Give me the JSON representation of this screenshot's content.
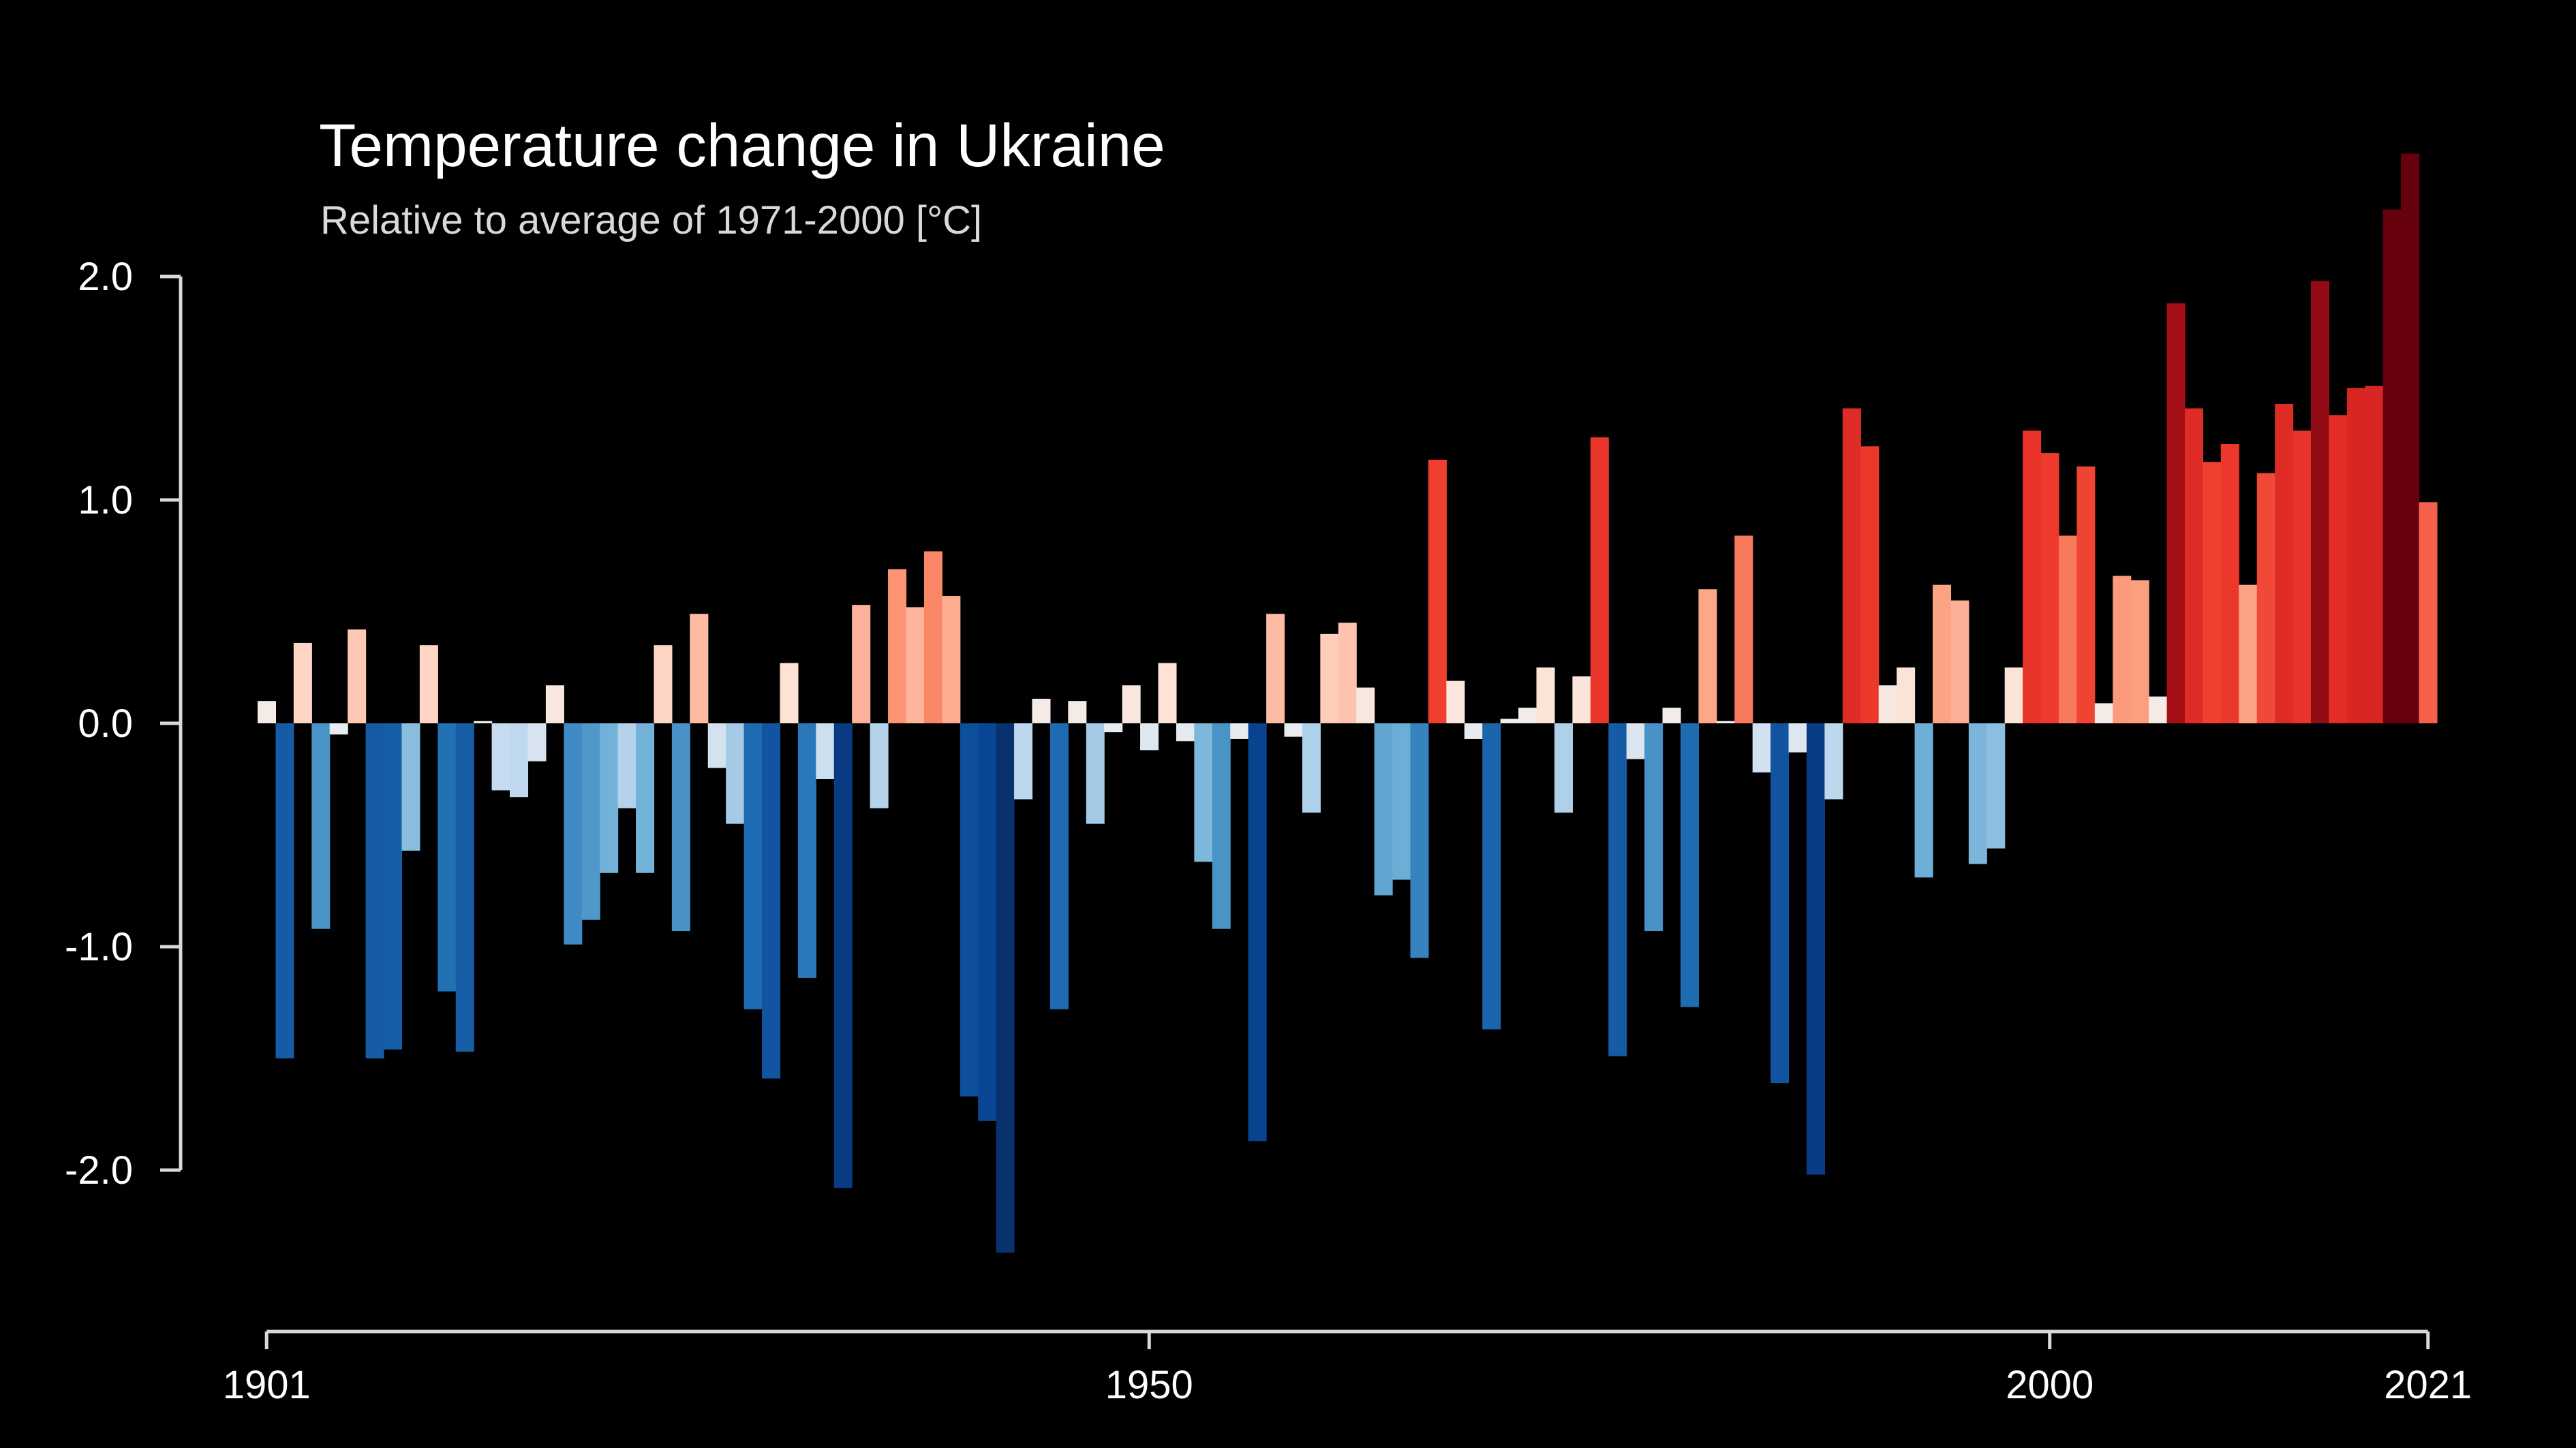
{
  "chart_data": {
    "type": "bar",
    "title": "Temperature change in Ukraine",
    "subtitle": "Relative to average of 1971-2000  [°C]",
    "xlabel": "",
    "ylabel": "",
    "x_start": 1901,
    "x_end": 2021,
    "ylim": [
      -2.8,
      2.5
    ],
    "y_ticks": [
      {
        "value": 2.0,
        "label": "2.0"
      },
      {
        "value": 1.0,
        "label": "1.0"
      },
      {
        "value": 0.0,
        "label": "0.0"
      },
      {
        "value": -1.0,
        "label": "-1.0"
      },
      {
        "value": -2.0,
        "label": "-2.0"
      }
    ],
    "x_ticks": [
      {
        "value": 1901,
        "label": "1901"
      },
      {
        "value": 1950,
        "label": "1950"
      },
      {
        "value": 2000,
        "label": "2000"
      },
      {
        "value": 2021,
        "label": "2021"
      }
    ],
    "grid": false,
    "legend": "none",
    "color_scale": {
      "negative_strong": "#08306b",
      "negative": "#2171b5",
      "negative_light": "#c6dbef",
      "positive_light": "#fee0d2",
      "positive": "#ef3b2c",
      "positive_strong": "#67000d"
    },
    "years": [
      1901,
      1902,
      1903,
      1904,
      1905,
      1906,
      1907,
      1908,
      1909,
      1910,
      1911,
      1912,
      1913,
      1914,
      1915,
      1916,
      1917,
      1918,
      1919,
      1920,
      1921,
      1922,
      1923,
      1924,
      1925,
      1926,
      1927,
      1928,
      1929,
      1930,
      1931,
      1932,
      1933,
      1934,
      1935,
      1936,
      1937,
      1938,
      1939,
      1940,
      1941,
      1942,
      1943,
      1944,
      1945,
      1946,
      1947,
      1948,
      1949,
      1950,
      1951,
      1952,
      1953,
      1954,
      1955,
      1956,
      1957,
      1958,
      1959,
      1960,
      1961,
      1962,
      1963,
      1964,
      1965,
      1966,
      1967,
      1968,
      1969,
      1970,
      1971,
      1972,
      1973,
      1974,
      1975,
      1976,
      1977,
      1978,
      1979,
      1980,
      1981,
      1982,
      1983,
      1984,
      1985,
      1986,
      1987,
      1988,
      1989,
      1990,
      1991,
      1992,
      1993,
      1994,
      1995,
      1996,
      1997,
      1998,
      1999,
      2000,
      2001,
      2002,
      2003,
      2004,
      2005,
      2006,
      2007,
      2008,
      2009,
      2010,
      2011,
      2012,
      2013,
      2014,
      2015,
      2016,
      2017,
      2018,
      2019,
      2020,
      2021
    ],
    "values": [
      0.1,
      -1.5,
      0.36,
      -0.92,
      -0.05,
      0.42,
      -1.5,
      -1.46,
      -0.57,
      0.35,
      -1.2,
      -1.47,
      0.01,
      -0.3,
      -0.33,
      -0.17,
      0.17,
      -0.99,
      -0.88,
      -0.67,
      -0.38,
      -0.67,
      0.35,
      -0.93,
      0.49,
      -0.2,
      -0.45,
      -1.28,
      -1.59,
      0.27,
      -1.14,
      -0.25,
      -2.08,
      0.53,
      -0.38,
      0.69,
      0.52,
      0.77,
      0.57,
      -1.67,
      -1.78,
      -2.37,
      -0.34,
      0.11,
      -1.28,
      0.1,
      -0.45,
      -0.04,
      0.17,
      -0.12,
      0.27,
      -0.08,
      -0.62,
      -0.92,
      -0.07,
      -1.87,
      0.49,
      -0.06,
      -0.4,
      0.4,
      0.45,
      0.16,
      -0.77,
      -0.7,
      -1.05,
      1.18,
      0.19,
      -0.07,
      -1.37,
      0.02,
      0.07,
      0.25,
      -0.4,
      0.21,
      1.28,
      -1.49,
      -0.16,
      -0.93,
      0.07,
      -1.27,
      0.6,
      0.01,
      0.84,
      -0.22,
      -1.61,
      -0.13,
      -2.02,
      -0.34,
      1.41,
      1.24,
      0.17,
      0.25,
      -0.69,
      0.62,
      0.55,
      -0.63,
      -0.56,
      0.25,
      1.31,
      1.21,
      0.84,
      1.15,
      0.09,
      0.66,
      0.64,
      0.12,
      1.88,
      1.41,
      1.17,
      1.25,
      0.62,
      1.12,
      1.43,
      1.31,
      1.98,
      1.38,
      1.5,
      1.51,
      2.3,
      2.55,
      0.99
    ]
  }
}
